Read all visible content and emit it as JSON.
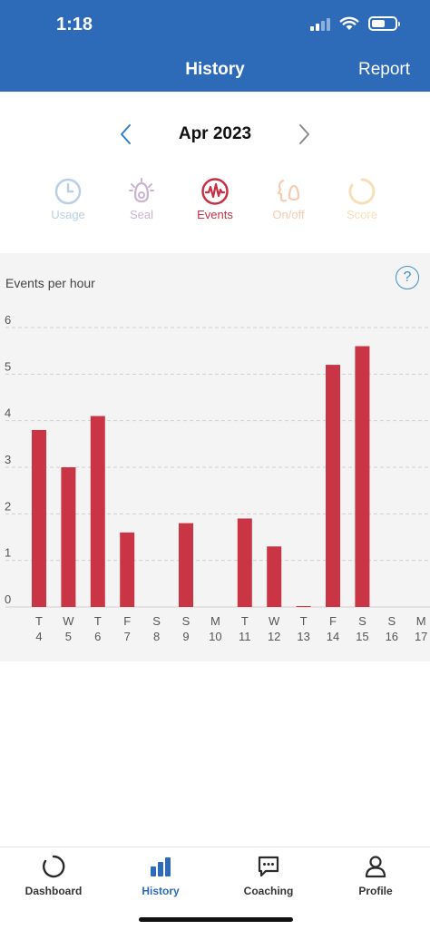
{
  "status_bar": {
    "time": "1:18"
  },
  "header": {
    "title": "History",
    "report_label": "Report"
  },
  "month_selector": {
    "month": "Apr 2023"
  },
  "tabs": [
    {
      "label": "Usage",
      "icon": "clock-icon",
      "color": "#b9cfe4",
      "active": false
    },
    {
      "label": "Seal",
      "icon": "mask-icon",
      "color": "#c9b3d3",
      "active": false
    },
    {
      "label": "Events",
      "icon": "waveform-icon",
      "color": "#c92f43",
      "active": true
    },
    {
      "label": "On/off",
      "icon": "face-mask-icon",
      "color": "#f5cbb2",
      "active": false
    },
    {
      "label": "Score",
      "icon": "ring-icon",
      "color": "#f7dfb8",
      "active": false
    }
  ],
  "chart": {
    "help_symbol": "?"
  },
  "chart_data": {
    "type": "bar",
    "ylabel": "Events per hour",
    "ylim": [
      0,
      6
    ],
    "y_ticks": [
      "0",
      "1",
      "2",
      "3",
      "4",
      "5",
      "6"
    ],
    "grid": true,
    "bar_color": "#c93545",
    "days": [
      "T",
      "W",
      "T",
      "F",
      "S",
      "S",
      "M",
      "T",
      "W",
      "T",
      "F",
      "S",
      "S",
      "M"
    ],
    "dates": [
      "4",
      "5",
      "6",
      "7",
      "8",
      "9",
      "10",
      "11",
      "12",
      "13",
      "14",
      "15",
      "16",
      "17"
    ],
    "values": [
      3.8,
      3.0,
      4.1,
      1.6,
      0,
      1.8,
      0,
      1.9,
      1.3,
      0.02,
      5.2,
      5.6,
      0,
      0
    ]
  },
  "tabbar": [
    {
      "label": "Dashboard",
      "icon": "dashboard-ring-icon",
      "active": false
    },
    {
      "label": "History",
      "icon": "bar-chart-icon",
      "active": true
    },
    {
      "label": "Coaching",
      "icon": "chat-bubble-icon",
      "active": false
    },
    {
      "label": "Profile",
      "icon": "person-icon",
      "active": false
    }
  ],
  "colors": {
    "brand_blue": "#2d6ab8",
    "accent_red": "#c93545",
    "tab_active_blue": "#2d6ab8"
  }
}
